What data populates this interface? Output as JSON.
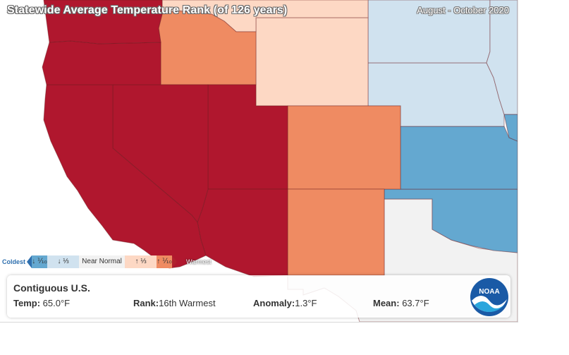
{
  "map": {
    "title": "Statewide Average Temperature Rank (of 126 years)",
    "period": "August - October 2020",
    "category_colors": {
      "record_warm": "#b0172e",
      "much_above": "#ef8b62",
      "above": "#fdd8c4",
      "near_normal": "#f2f2f2",
      "below": "#d0e2ef",
      "much_below": "#64a8d0"
    },
    "states_visible": [
      {
        "id": "WA",
        "category": "record_warm"
      },
      {
        "id": "OR",
        "category": "record_warm"
      },
      {
        "id": "CA",
        "category": "record_warm"
      },
      {
        "id": "NV",
        "category": "record_warm"
      },
      {
        "id": "UT",
        "category": "record_warm"
      },
      {
        "id": "AZ",
        "category": "record_warm"
      },
      {
        "id": "ID",
        "category": "much_above"
      },
      {
        "id": "MT",
        "category": "above"
      },
      {
        "id": "WY",
        "category": "above"
      },
      {
        "id": "CO",
        "category": "much_above"
      },
      {
        "id": "NM",
        "category": "much_above"
      },
      {
        "id": "ND",
        "category": "below"
      },
      {
        "id": "SD",
        "category": "below"
      },
      {
        "id": "NE",
        "category": "below"
      },
      {
        "id": "MN",
        "category": "below"
      },
      {
        "id": "KS",
        "category": "much_below"
      },
      {
        "id": "OK",
        "category": "much_below"
      },
      {
        "id": "MO",
        "category": "much_below"
      },
      {
        "id": "TX",
        "category": "near_normal"
      }
    ]
  },
  "legend": {
    "cold_label": "Coldest",
    "warm_label": "Warmest",
    "items": [
      {
        "label": "↓ ⅒",
        "color": "#64a8d0"
      },
      {
        "label": "↓ ⅓",
        "color": "#d0e2ef"
      },
      {
        "label": "Near Normal",
        "color": "#f2f2f2"
      },
      {
        "label": "↑ ⅓",
        "color": "#fdd8c4"
      },
      {
        "label": "↑ ⅒",
        "color": "#ef8b62"
      }
    ]
  },
  "info": {
    "region": "Contiguous U.S.",
    "temp_label": "Temp:",
    "temp_value": "65.0°F",
    "rank_label": "Rank:",
    "rank_value": "16th Warmest",
    "anomaly_label": "Anomaly:",
    "anomaly_value": "1.3°F",
    "mean_label": "Mean:",
    "mean_value": "63.7°F"
  },
  "logo": {
    "text": "NOAA",
    "icon": "noaa-logo-icon"
  }
}
